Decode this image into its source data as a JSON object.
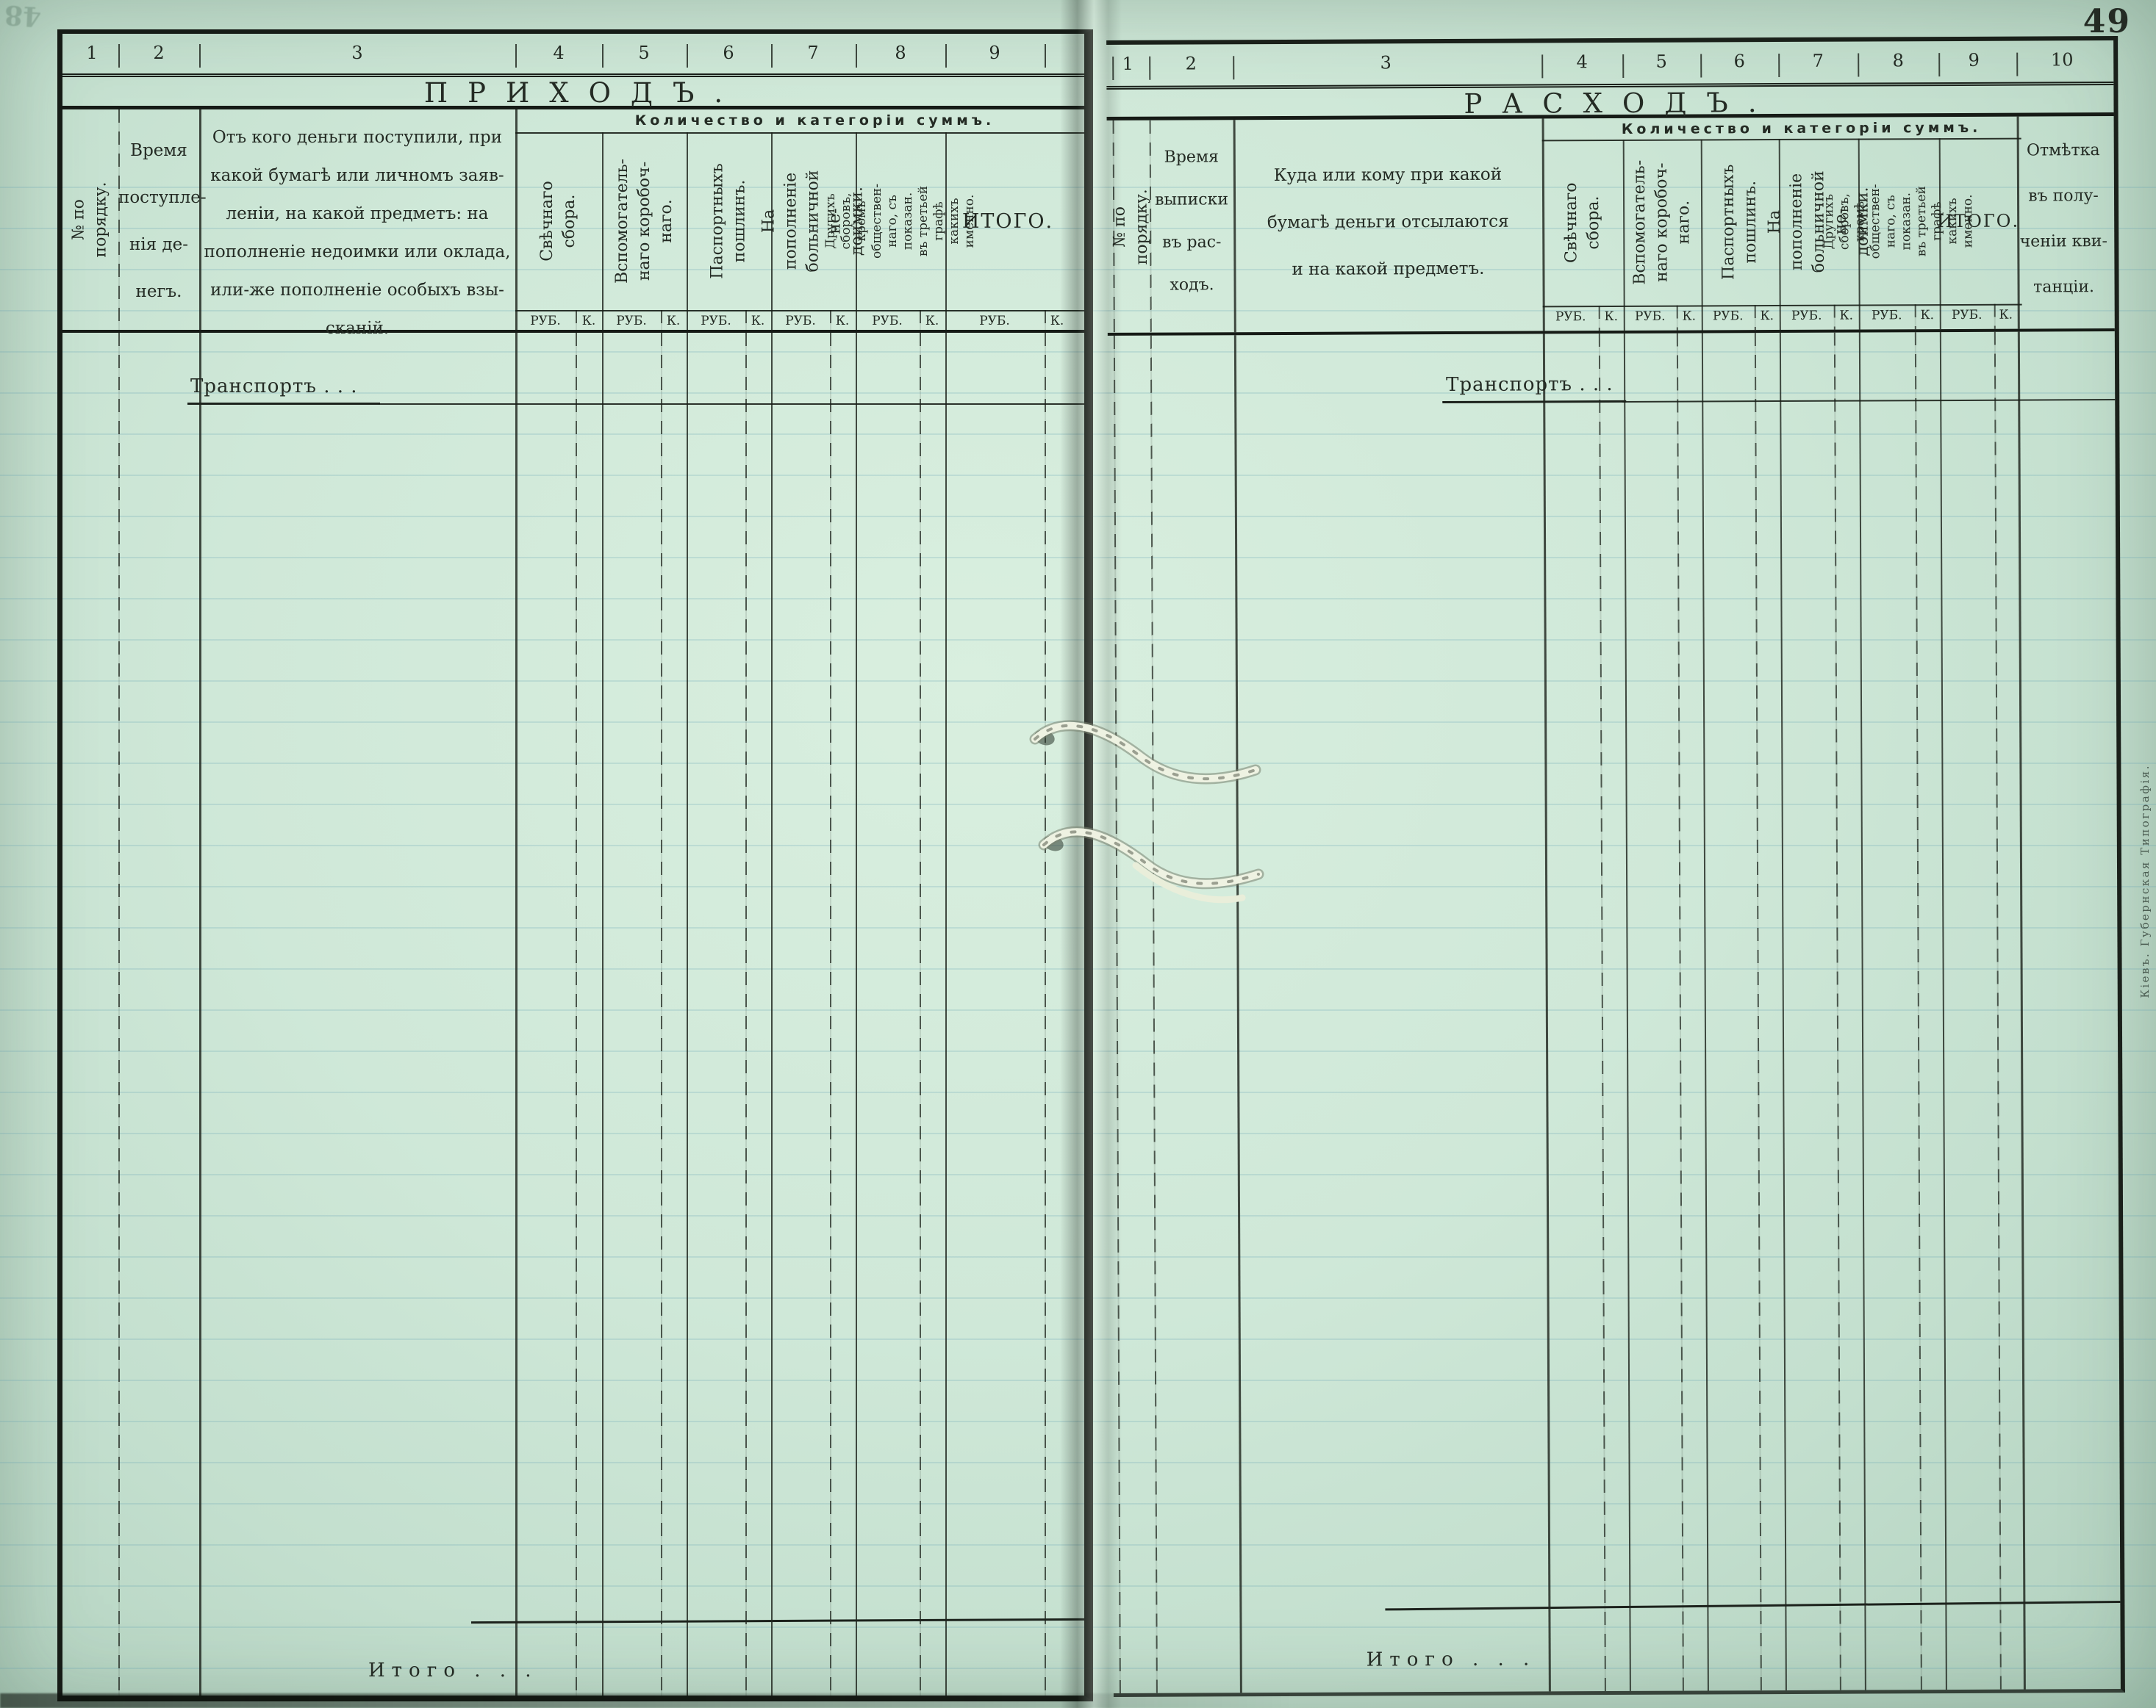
{
  "page": {
    "number": "49",
    "ghost_number": "48",
    "imprint": "Кіевъ. Губернская Типографія."
  },
  "labels": {
    "rub": "РУБ.",
    "kop": "К."
  },
  "money_columns": [
    "Свѣчнаго сбора.",
    "Вспомогатель-\nнаго коробоч-\nнаго.",
    "Паспортныхъ\nпошлинъ.",
    "На пополненіе\nбольничной не-\nдоимки.",
    "Другихъ сборовъ,\nкромѣ обществен-\nнаго, съ показан.\nвъ третьей графѣ\nкакихъ именно."
  ],
  "prihod": {
    "title": "ПРИХОДЪ.",
    "column_numbers": [
      "1",
      "2",
      "3",
      "4",
      "5",
      "6",
      "7",
      "8",
      "9"
    ],
    "group_header": "Количество и категоріи суммъ.",
    "col_order": "№ по порядку.",
    "col_time": "Время\nпоступле-\nнія де-\nнегъ.",
    "col_source": "Отъ кого деньги поступили, при\nкакой бумагѣ или личномъ заяв-\nленіи, на какой предметъ: на\nпополненіе недоимки или оклада,\nили-же пополненіе особыхъ взы-\nсканій.",
    "col_total": "ИТОГО.",
    "transport": "Транспортъ . . .",
    "itogo": "Итого . . ."
  },
  "rashod": {
    "title": "РАСХОДЪ.",
    "column_numbers": [
      "1",
      "2",
      "3",
      "4",
      "5",
      "6",
      "7",
      "8",
      "9",
      "10"
    ],
    "group_header": "Количество и категоріи суммъ.",
    "col_order": "№ по порядку.",
    "col_time": "Время\nвыписки\nвъ рас-\nходъ.",
    "col_dest": "Куда или кому при какой\nбумагѣ деньги отсылаются\nи на какой предметъ.",
    "col_total": "ИТОГО.",
    "col_receipt": "Отмѣтка\nвъ полу-\nченіи кви-\nтанціи.",
    "transport": "Транспортъ . . .",
    "itogo": "Итого . . ."
  }
}
